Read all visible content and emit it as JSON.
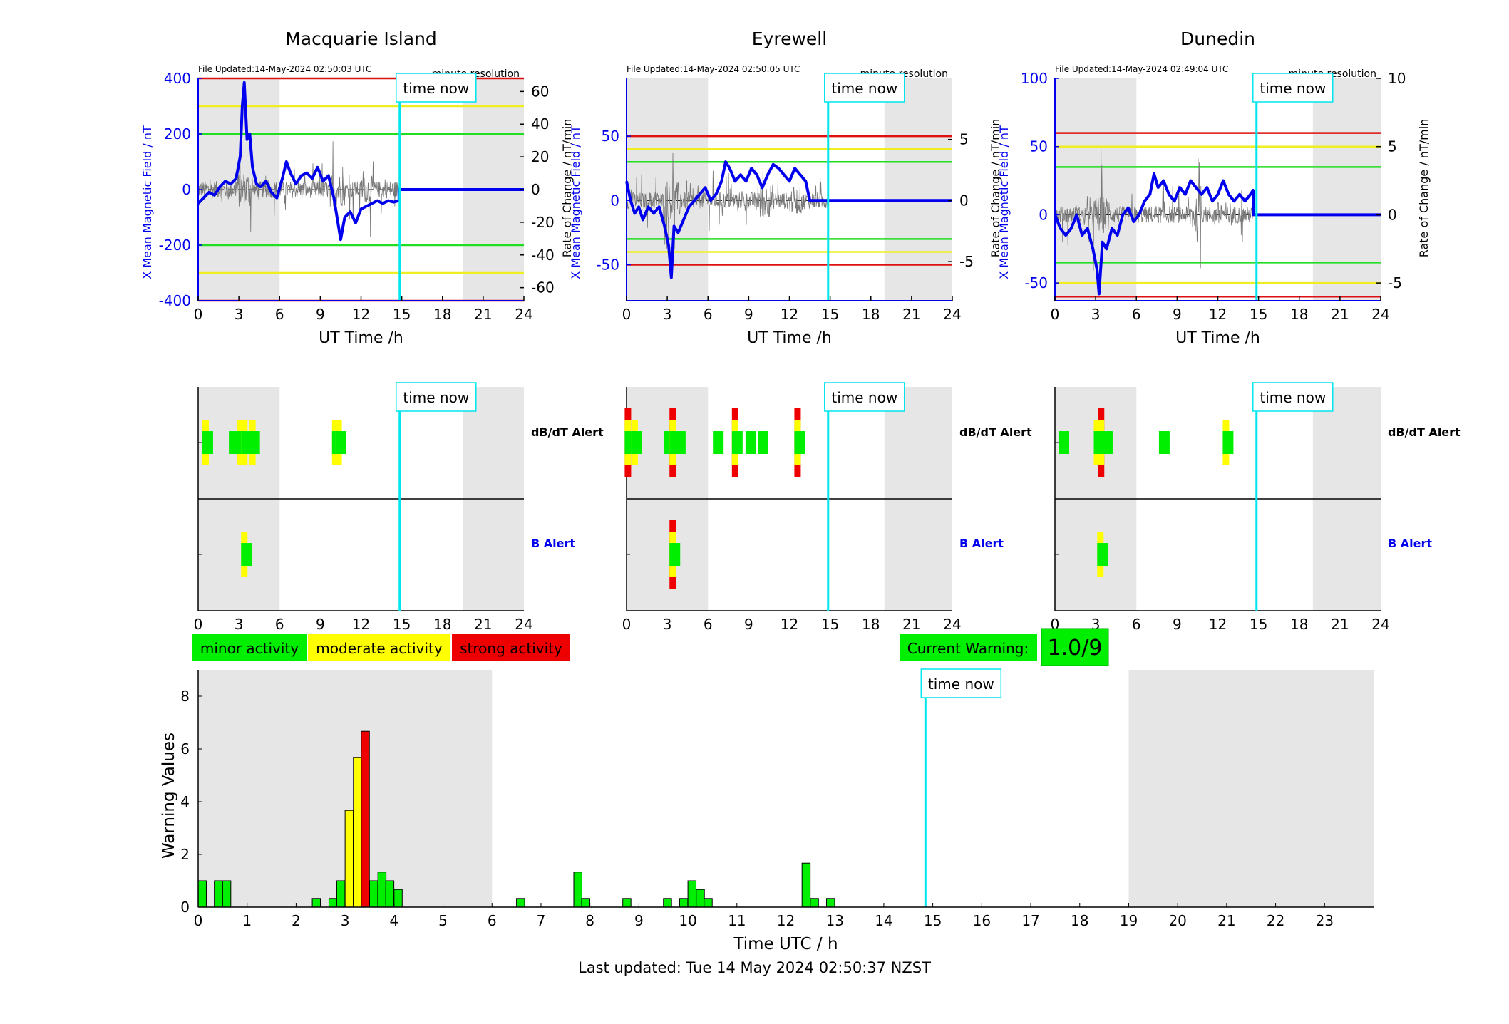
{
  "stations": [
    {
      "title": "Macquarie Island",
      "file_updated": "File Updated:14-May-2024 02:50:03 UTC",
      "resolution": "minute resolution",
      "ylabel_left": "X Mean Magnetic Field / nT",
      "ylabel_right": "Rate of Change / nT/min",
      "left_ylim": [
        -400,
        400
      ],
      "left_ticks": [
        -400,
        -200,
        0,
        200,
        400
      ],
      "right_ylim": [
        -68,
        68
      ],
      "right_ticks": [
        -60,
        -40,
        -20,
        0,
        20,
        40,
        60
      ],
      "thresholds": {
        "red": 400,
        "yellow": 300,
        "green": 200
      },
      "night_shading": [
        [
          0,
          6
        ],
        [
          19.5,
          24
        ]
      ],
      "field": [
        [
          0,
          -50
        ],
        [
          0.4,
          -30
        ],
        [
          0.8,
          -10
        ],
        [
          1.2,
          -20
        ],
        [
          1.6,
          10
        ],
        [
          2,
          30
        ],
        [
          2.4,
          20
        ],
        [
          2.8,
          40
        ],
        [
          3.1,
          120
        ],
        [
          3.25,
          300
        ],
        [
          3.4,
          385
        ],
        [
          3.6,
          180
        ],
        [
          3.8,
          200
        ],
        [
          4.0,
          80
        ],
        [
          4.3,
          20
        ],
        [
          4.6,
          10
        ],
        [
          5.0,
          30
        ],
        [
          5.4,
          -10
        ],
        [
          5.8,
          -30
        ],
        [
          6.2,
          40
        ],
        [
          6.5,
          100
        ],
        [
          6.8,
          60
        ],
        [
          7.2,
          20
        ],
        [
          7.6,
          50
        ],
        [
          8.0,
          60
        ],
        [
          8.4,
          40
        ],
        [
          8.8,
          80
        ],
        [
          9.2,
          30
        ],
        [
          9.6,
          50
        ],
        [
          10.0,
          -30
        ],
        [
          10.3,
          -120
        ],
        [
          10.5,
          -180
        ],
        [
          10.8,
          -100
        ],
        [
          11.2,
          -80
        ],
        [
          11.6,
          -120
        ],
        [
          12.0,
          -70
        ],
        [
          12.4,
          -60
        ],
        [
          12.8,
          -50
        ],
        [
          13.2,
          -40
        ],
        [
          13.6,
          -50
        ],
        [
          14.0,
          -40
        ],
        [
          14.4,
          -45
        ],
        [
          14.8,
          -40
        ],
        [
          14.8,
          0
        ],
        [
          24,
          0
        ]
      ],
      "rate_series": "rate-of-change"
    },
    {
      "title": "Eyrewell",
      "file_updated": "File Updated:14-May-2024 02:50:05 UTC",
      "resolution": "minute resolution",
      "ylabel_left": "X Mean Magnetic Field / nT",
      "ylabel_right": "Rate of Change / nT/min",
      "left_ylim": [
        -78,
        95
      ],
      "left_ticks": [
        -50,
        0,
        50
      ],
      "right_ylim": [
        -8.2,
        10
      ],
      "right_ticks": [
        -5,
        0,
        5
      ],
      "thresholds": {
        "red": 50,
        "yellow": 40,
        "green": 30
      },
      "night_shading": [
        [
          0,
          6
        ],
        [
          19,
          24
        ]
      ],
      "field": [
        [
          0,
          15
        ],
        [
          0.3,
          0
        ],
        [
          0.6,
          -10
        ],
        [
          0.9,
          -5
        ],
        [
          1.2,
          -15
        ],
        [
          1.6,
          -5
        ],
        [
          2.0,
          -10
        ],
        [
          2.4,
          -5
        ],
        [
          2.8,
          -20
        ],
        [
          3.1,
          -35
        ],
        [
          3.3,
          -60
        ],
        [
          3.5,
          -20
        ],
        [
          3.8,
          -25
        ],
        [
          4.2,
          -15
        ],
        [
          4.6,
          -5
        ],
        [
          5.0,
          0
        ],
        [
          5.4,
          5
        ],
        [
          5.8,
          10
        ],
        [
          6.2,
          0
        ],
        [
          6.6,
          5
        ],
        [
          7.0,
          15
        ],
        [
          7.3,
          30
        ],
        [
          7.6,
          25
        ],
        [
          8.0,
          15
        ],
        [
          8.4,
          20
        ],
        [
          8.8,
          15
        ],
        [
          9.2,
          25
        ],
        [
          9.6,
          20
        ],
        [
          10.0,
          10
        ],
        [
          10.4,
          20
        ],
        [
          10.8,
          28
        ],
        [
          11.2,
          25
        ],
        [
          11.6,
          20
        ],
        [
          12.0,
          15
        ],
        [
          12.4,
          25
        ],
        [
          12.8,
          20
        ],
        [
          13.2,
          15
        ],
        [
          13.5,
          0
        ],
        [
          24,
          0
        ]
      ],
      "rate_series": "rate-of-change"
    },
    {
      "title": "Dunedin",
      "file_updated": "File Updated:14-May-2024 02:49:04 UTC",
      "resolution": "minute resolution",
      "ylabel_left": "X Mean Magnetic Field / nT",
      "ylabel_right": "Rate of Change / nT/min",
      "left_ylim": [
        -63,
        100
      ],
      "left_ticks": [
        -50,
        0,
        50,
        100
      ],
      "right_ylim": [
        -6.3,
        10
      ],
      "right_ticks": [
        -5,
        0,
        5,
        10
      ],
      "thresholds": {
        "red": 60,
        "yellow": 50,
        "green": 35
      },
      "night_shading": [
        [
          0,
          6
        ],
        [
          19,
          24
        ]
      ],
      "field": [
        [
          0,
          0
        ],
        [
          0.4,
          -10
        ],
        [
          0.8,
          -15
        ],
        [
          1.2,
          -10
        ],
        [
          1.6,
          0
        ],
        [
          2.0,
          -15
        ],
        [
          2.4,
          -10
        ],
        [
          2.8,
          -25
        ],
        [
          3.1,
          -40
        ],
        [
          3.25,
          -58
        ],
        [
          3.5,
          -20
        ],
        [
          3.8,
          -25
        ],
        [
          4.2,
          -10
        ],
        [
          4.6,
          -15
        ],
        [
          5.0,
          0
        ],
        [
          5.4,
          5
        ],
        [
          5.8,
          -5
        ],
        [
          6.2,
          0
        ],
        [
          6.6,
          10
        ],
        [
          7.0,
          15
        ],
        [
          7.3,
          30
        ],
        [
          7.6,
          20
        ],
        [
          8.0,
          25
        ],
        [
          8.4,
          15
        ],
        [
          8.8,
          10
        ],
        [
          9.2,
          20
        ],
        [
          9.6,
          15
        ],
        [
          10.0,
          25
        ],
        [
          10.4,
          20
        ],
        [
          10.8,
          15
        ],
        [
          11.2,
          20
        ],
        [
          11.6,
          10
        ],
        [
          12.0,
          15
        ],
        [
          12.4,
          25
        ],
        [
          12.8,
          15
        ],
        [
          13.2,
          10
        ],
        [
          13.6,
          15
        ],
        [
          14.0,
          10
        ],
        [
          14.4,
          15
        ],
        [
          14.6,
          18
        ],
        [
          14.6,
          0
        ],
        [
          24,
          0
        ]
      ],
      "rate_series": "rate-of-change"
    }
  ],
  "axes": {
    "xlabel": "UT Time /h",
    "xlim": [
      0,
      24
    ],
    "xticks": [
      0,
      3,
      6,
      9,
      12,
      15,
      18,
      21,
      24
    ],
    "time_now": 14.85,
    "time_now_label": "time now"
  },
  "alerts": {
    "dbdt_label": "dB/dT Alert",
    "b_label": "B Alert",
    "stations": [
      {
        "dbdt": [
          {
            "x": 0.55,
            "level": "moderate"
          },
          {
            "x": 2.5,
            "level": "minor"
          },
          {
            "x": 3.1,
            "level": "moderate"
          },
          {
            "x": 3.4,
            "level": "moderate"
          },
          {
            "x": 3.7,
            "level": "minor"
          },
          {
            "x": 4.0,
            "level": "moderate"
          },
          {
            "x": 10.1,
            "level": "moderate"
          },
          {
            "x": 10.35,
            "level": "moderate"
          }
        ],
        "b": [
          {
            "x": 3.4,
            "level": "moderate"
          }
        ]
      },
      {
        "dbdt": [
          {
            "x": 0.1,
            "level": "strong"
          },
          {
            "x": 0.6,
            "level": "moderate"
          },
          {
            "x": 3.0,
            "level": "minor"
          },
          {
            "x": 3.4,
            "level": "strong"
          },
          {
            "x": 3.8,
            "level": "minor"
          },
          {
            "x": 6.6,
            "level": "minor"
          },
          {
            "x": 8.0,
            "level": "strong"
          },
          {
            "x": 9.0,
            "level": "minor"
          },
          {
            "x": 9.9,
            "level": "minor"
          },
          {
            "x": 12.6,
            "level": "strong"
          }
        ],
        "b": [
          {
            "x": 3.4,
            "level": "strong"
          }
        ]
      },
      {
        "dbdt": [
          {
            "x": 0.5,
            "level": "minor"
          },
          {
            "x": 3.1,
            "level": "moderate"
          },
          {
            "x": 3.4,
            "level": "strong"
          },
          {
            "x": 3.7,
            "level": "minor"
          },
          {
            "x": 7.9,
            "level": "minor"
          },
          {
            "x": 12.6,
            "level": "moderate"
          }
        ],
        "b": [
          {
            "x": 3.35,
            "level": "moderate"
          }
        ]
      }
    ]
  },
  "legend": {
    "minor": "minor activity",
    "moderate": "moderate activity",
    "strong": "strong activity"
  },
  "current_warning": {
    "label": "Current Warning:",
    "value": "1.0/9"
  },
  "colors": {
    "minor": "#00ee00",
    "moderate": "#ffff00",
    "strong": "#ee0000",
    "time_now": "#00e5ee",
    "field": "#0000ee",
    "night": "#e6e6e6",
    "green_line": "#22dd22",
    "yellow_line": "#eeee22",
    "red_line": "#dd1111"
  },
  "chart_data": [
    {
      "type": "line",
      "title": "Macquarie Island",
      "xlabel": "UT Time /h",
      "ylabel": "X Mean Magnetic Field / nT",
      "y2label": "Rate of Change / nT/min",
      "xlim": [
        0,
        24
      ],
      "ylim": [
        -400,
        400
      ],
      "series": [
        {
          "name": "X Mean Magnetic Field",
          "ref": "stations.0.field"
        }
      ]
    },
    {
      "type": "line",
      "title": "Eyrewell",
      "xlabel": "UT Time /h",
      "ylabel": "X Mean Magnetic Field / nT",
      "y2label": "Rate of Change / nT/min",
      "xlim": [
        0,
        24
      ],
      "series": [
        {
          "name": "X Mean Magnetic Field",
          "ref": "stations.1.field"
        }
      ]
    },
    {
      "type": "line",
      "title": "Dunedin",
      "xlabel": "UT Time /h",
      "ylabel": "X Mean Magnetic Field / nT",
      "y2label": "Rate of Change / nT/min",
      "xlim": [
        0,
        24
      ],
      "series": [
        {
          "name": "X Mean Magnetic Field",
          "ref": "stations.2.field"
        }
      ]
    },
    {
      "type": "bar",
      "xlabel": "Time UTC / h",
      "ylabel": "Warning Values",
      "xlim": [
        0,
        24
      ],
      "ylim": [
        0,
        9
      ],
      "xticks": [
        0,
        1,
        2,
        3,
        4,
        5,
        6,
        7,
        8,
        9,
        10,
        11,
        12,
        13,
        14,
        15,
        16,
        17,
        18,
        19,
        20,
        21,
        22,
        23
      ],
      "yticks": [
        0,
        2,
        4,
        6,
        8
      ],
      "night_shading": [
        [
          0,
          6
        ],
        [
          19,
          24
        ]
      ],
      "time_now": 14.85,
      "time_now_label": "time now",
      "bars": [
        {
          "x": 0.0,
          "value": 1.0,
          "level": "minor"
        },
        {
          "x": 0.33,
          "value": 1.0,
          "level": "minor"
        },
        {
          "x": 0.5,
          "value": 1.0,
          "level": "minor"
        },
        {
          "x": 2.33,
          "value": 0.33,
          "level": "minor"
        },
        {
          "x": 2.67,
          "value": 0.33,
          "level": "minor"
        },
        {
          "x": 2.83,
          "value": 1.0,
          "level": "minor"
        },
        {
          "x": 3.0,
          "value": 3.67,
          "level": "moderate"
        },
        {
          "x": 3.17,
          "value": 5.67,
          "level": "moderate"
        },
        {
          "x": 3.33,
          "value": 6.67,
          "level": "strong"
        },
        {
          "x": 3.5,
          "value": 1.0,
          "level": "minor"
        },
        {
          "x": 3.67,
          "value": 1.33,
          "level": "minor"
        },
        {
          "x": 3.83,
          "value": 1.0,
          "level": "minor"
        },
        {
          "x": 4.0,
          "value": 0.67,
          "level": "minor"
        },
        {
          "x": 6.5,
          "value": 0.33,
          "level": "minor"
        },
        {
          "x": 7.67,
          "value": 1.33,
          "level": "minor"
        },
        {
          "x": 7.83,
          "value": 0.33,
          "level": "minor"
        },
        {
          "x": 8.67,
          "value": 0.33,
          "level": "minor"
        },
        {
          "x": 9.5,
          "value": 0.33,
          "level": "minor"
        },
        {
          "x": 9.83,
          "value": 0.33,
          "level": "minor"
        },
        {
          "x": 10.0,
          "value": 1.0,
          "level": "minor"
        },
        {
          "x": 10.17,
          "value": 0.67,
          "level": "minor"
        },
        {
          "x": 10.33,
          "value": 0.33,
          "level": "minor"
        },
        {
          "x": 12.33,
          "value": 1.67,
          "level": "minor"
        },
        {
          "x": 12.5,
          "value": 0.33,
          "level": "minor"
        },
        {
          "x": 12.83,
          "value": 0.33,
          "level": "minor"
        }
      ]
    }
  ],
  "status": {
    "last_updated": "Last updated: Tue 14 May 2024 02:50:37 NZST"
  }
}
